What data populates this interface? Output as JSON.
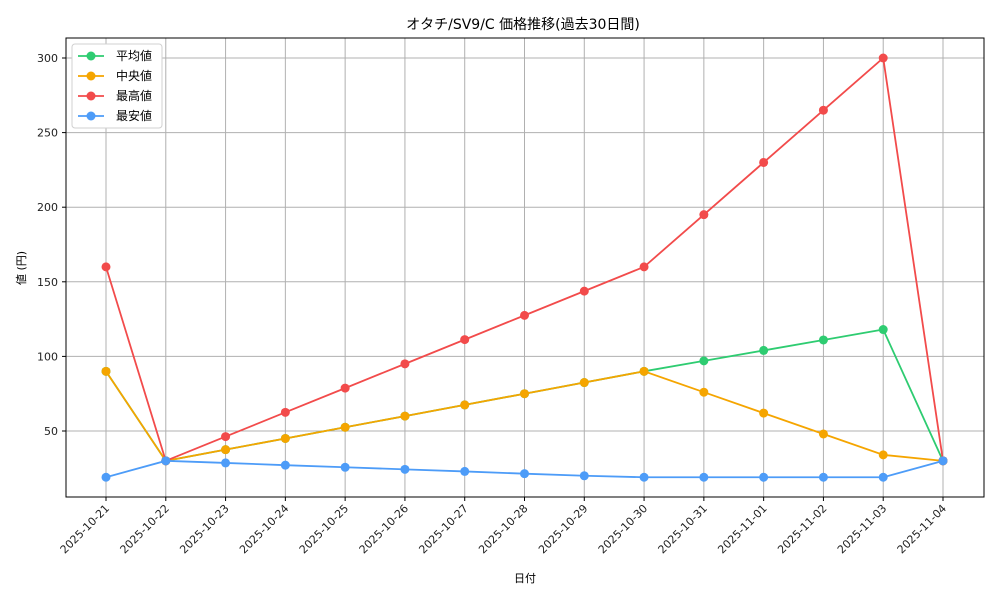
{
  "chart_data": {
    "type": "line",
    "title": "オタチ/SV9/C 価格推移(過去30日間)",
    "xlabel": "日付",
    "ylabel": "値 (円)",
    "categories": [
      "2025-10-21",
      "2025-10-22",
      "2025-10-23",
      "2025-10-24",
      "2025-10-25",
      "2025-10-26",
      "2025-10-27",
      "2025-10-28",
      "2025-10-29",
      "2025-10-30",
      "2025-10-31",
      "2025-11-01",
      "2025-11-02",
      "2025-11-03",
      "2025-11-04"
    ],
    "yticks": [
      50,
      100,
      150,
      200,
      250,
      300
    ],
    "ylim": [
      5.8,
      313.5
    ],
    "grid": true,
    "legend_position": "upper left",
    "series": [
      {
        "name": "平均値",
        "color": "#2ecc71",
        "values": [
          90,
          30,
          37.5,
          45,
          52.5,
          60,
          67.5,
          75,
          82.5,
          90,
          97,
          104,
          111,
          118,
          30
        ]
      },
      {
        "name": "中央値",
        "color": "#f5a500",
        "values": [
          90,
          30,
          37.5,
          45,
          52.5,
          60,
          67.5,
          75,
          82.5,
          90,
          76,
          62,
          48,
          34,
          30
        ]
      },
      {
        "name": "最高値",
        "color": "#f24b4b",
        "values": [
          160,
          30,
          46.25,
          62.5,
          78.75,
          95,
          111.25,
          127.5,
          143.75,
          160,
          195,
          230,
          265,
          300,
          30
        ]
      },
      {
        "name": "最安値",
        "color": "#4d9cf8",
        "values": [
          19,
          30,
          28.6,
          27.1,
          25.7,
          24.3,
          22.9,
          21.4,
          20,
          19,
          19,
          19,
          19,
          19,
          30
        ]
      }
    ]
  }
}
